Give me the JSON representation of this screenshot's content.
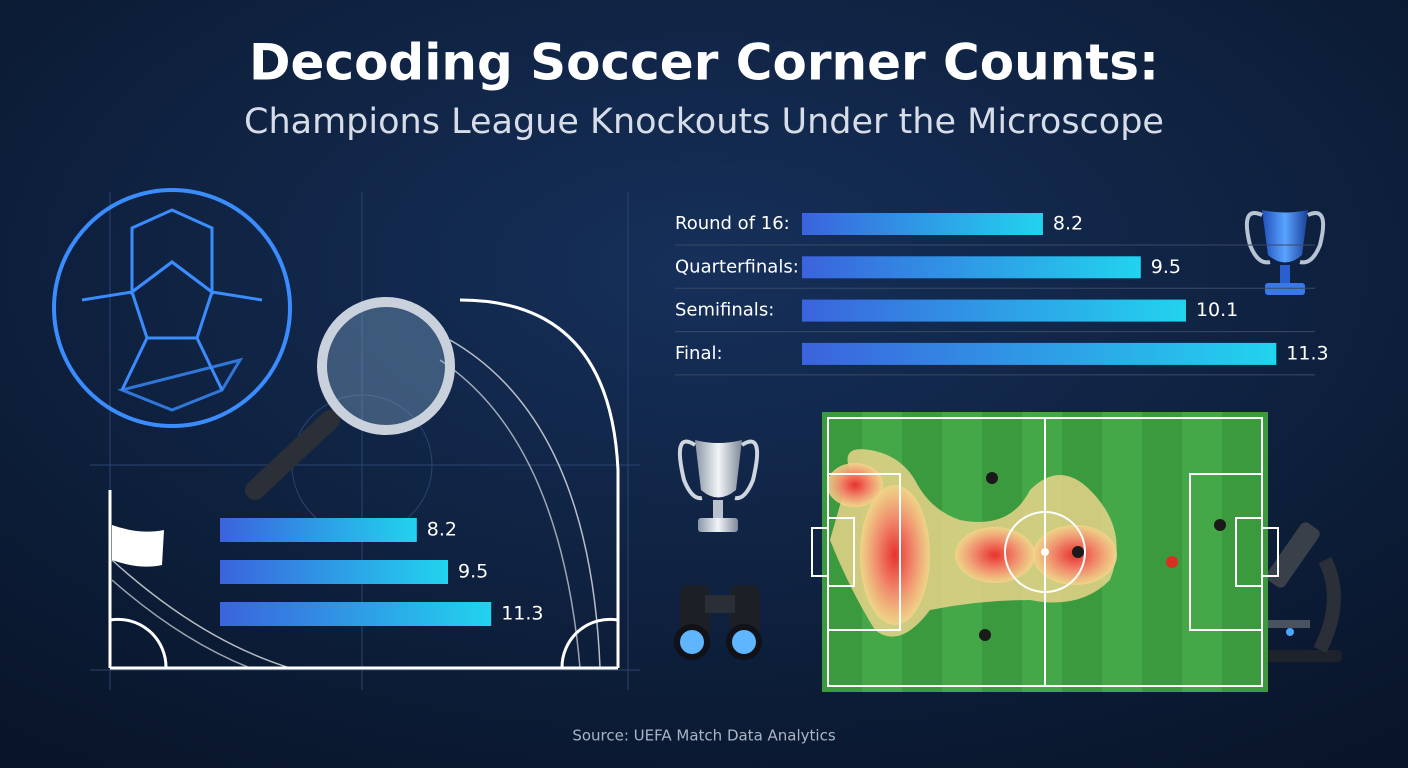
{
  "title": "Decoding Soccer Corner Counts:",
  "subtitle": "Champions League Knockouts Under the Microscope",
  "source": "Source: UEFA Match Data Analytics",
  "chart_data": [
    {
      "type": "bar",
      "orientation": "horizontal",
      "categories": [
        "Round of 16:",
        "Quarterfinals:",
        "Semifinals:",
        "Final:"
      ],
      "values": [
        8.2,
        9.5,
        10.1,
        11.3
      ],
      "color": [
        "#3b63dd",
        "#22d3ee"
      ],
      "xlim": [
        5,
        12
      ],
      "grid": true
    },
    {
      "type": "bar",
      "orientation": "horizontal",
      "categories": [
        null,
        null,
        null
      ],
      "values": [
        8.2,
        9.5,
        11.3
      ],
      "color": [
        "#3b63dd",
        "#22d3ee"
      ],
      "xlim": [
        0,
        12
      ],
      "grid": false
    }
  ]
}
